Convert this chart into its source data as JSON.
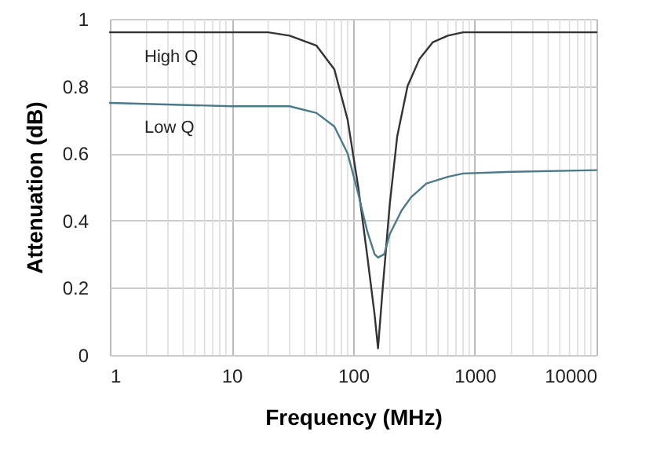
{
  "chart_data": {
    "type": "line",
    "xlabel": "Frequency (MHz)",
    "ylabel": "Attenuation (dB)",
    "log": "x",
    "grid": true,
    "xlim": [
      1,
      10000
    ],
    "xticks": [
      1,
      10,
      100,
      1000,
      10000
    ],
    "ylim": [
      0,
      1
    ],
    "yticks": [
      0,
      0.2,
      0.4,
      0.6,
      0.8,
      1
    ],
    "series": [
      {
        "name": "High Q",
        "color": "#333333",
        "x": [
          1,
          10,
          20,
          30,
          50,
          70,
          90,
          110,
          130,
          150,
          160,
          175,
          200,
          230,
          280,
          350,
          450,
          600,
          800,
          10000
        ],
        "values": [
          0.96,
          0.96,
          0.96,
          0.95,
          0.92,
          0.85,
          0.7,
          0.5,
          0.3,
          0.12,
          0.02,
          0.2,
          0.45,
          0.65,
          0.8,
          0.88,
          0.93,
          0.95,
          0.96,
          0.96
        ]
      },
      {
        "name": "Low Q",
        "color": "#4a7a8a",
        "x": [
          1,
          10,
          20,
          30,
          50,
          70,
          90,
          110,
          130,
          150,
          160,
          180,
          200,
          250,
          300,
          400,
          600,
          800,
          2000,
          10000
        ],
        "values": [
          0.75,
          0.74,
          0.74,
          0.74,
          0.72,
          0.68,
          0.6,
          0.48,
          0.37,
          0.3,
          0.29,
          0.3,
          0.36,
          0.43,
          0.47,
          0.51,
          0.53,
          0.54,
          0.545,
          0.55
        ]
      }
    ]
  }
}
